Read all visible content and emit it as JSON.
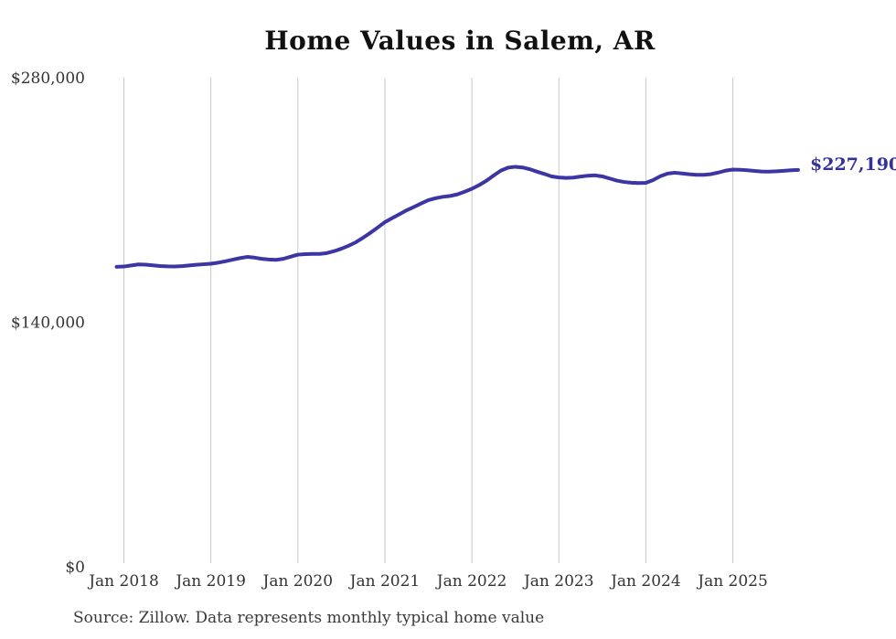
{
  "chart": {
    "title": "Home Values in Salem, AR",
    "end_label": "$227,190",
    "source": "Source: Zillow. Data represents monthly typical home value"
  },
  "chart_data": {
    "type": "line",
    "title": "Home Values in Salem, AR",
    "xlabel": "",
    "ylabel": "",
    "ylim": [
      0,
      280000
    ],
    "y_ticks": [
      0,
      140000,
      280000
    ],
    "y_tick_labels": [
      "$0",
      "$140,000",
      "$280,000"
    ],
    "x_tick_labels": [
      "Jan 2018",
      "Jan 2019",
      "Jan 2020",
      "Jan 2021",
      "Jan 2022",
      "Jan 2023",
      "Jan 2024",
      "Jan 2025"
    ],
    "x_start_month": "2017-12",
    "x_frequency": "monthly",
    "grid": "vertical-only",
    "legend": "none",
    "final_value": 227190,
    "final_value_label": "$227,190",
    "source": "Source: Zillow. Data represents monthly typical home value",
    "colors": {
      "line": "#3c35a3",
      "end_label": "#34309c",
      "grid": "#c9c9c9",
      "tick_text": "#333333",
      "title_text": "#111111",
      "source_text": "#3a3a3a",
      "background": "#ffffff"
    },
    "series": [
      {
        "name": "Typical home value",
        "monthly_values": [
          171700,
          171900,
          172500,
          173100,
          173000,
          172600,
          172200,
          172000,
          171900,
          172100,
          172500,
          172900,
          173200,
          173500,
          174100,
          174900,
          175800,
          176700,
          177400,
          177000,
          176300,
          175900,
          175700,
          176300,
          177500,
          178700,
          179000,
          179100,
          179100,
          179600,
          180700,
          182100,
          183800,
          185800,
          188400,
          191200,
          194200,
          197300,
          199600,
          201800,
          204100,
          206000,
          208000,
          209900,
          211000,
          211800,
          212300,
          213200,
          214700,
          216400,
          218500,
          221000,
          224000,
          226800,
          228500,
          229000,
          228600,
          227600,
          226200,
          224900,
          223500,
          222900,
          222600,
          222800,
          223400,
          223900,
          224100,
          223500,
          222300,
          221100,
          220300,
          219900,
          219700,
          219800,
          221400,
          223600,
          225100,
          225600,
          225200,
          224700,
          224400,
          224400,
          224800,
          225700,
          226800,
          227400,
          227300,
          227000,
          226600,
          226300,
          226200,
          226400,
          226700,
          227000,
          227190
        ]
      }
    ]
  }
}
